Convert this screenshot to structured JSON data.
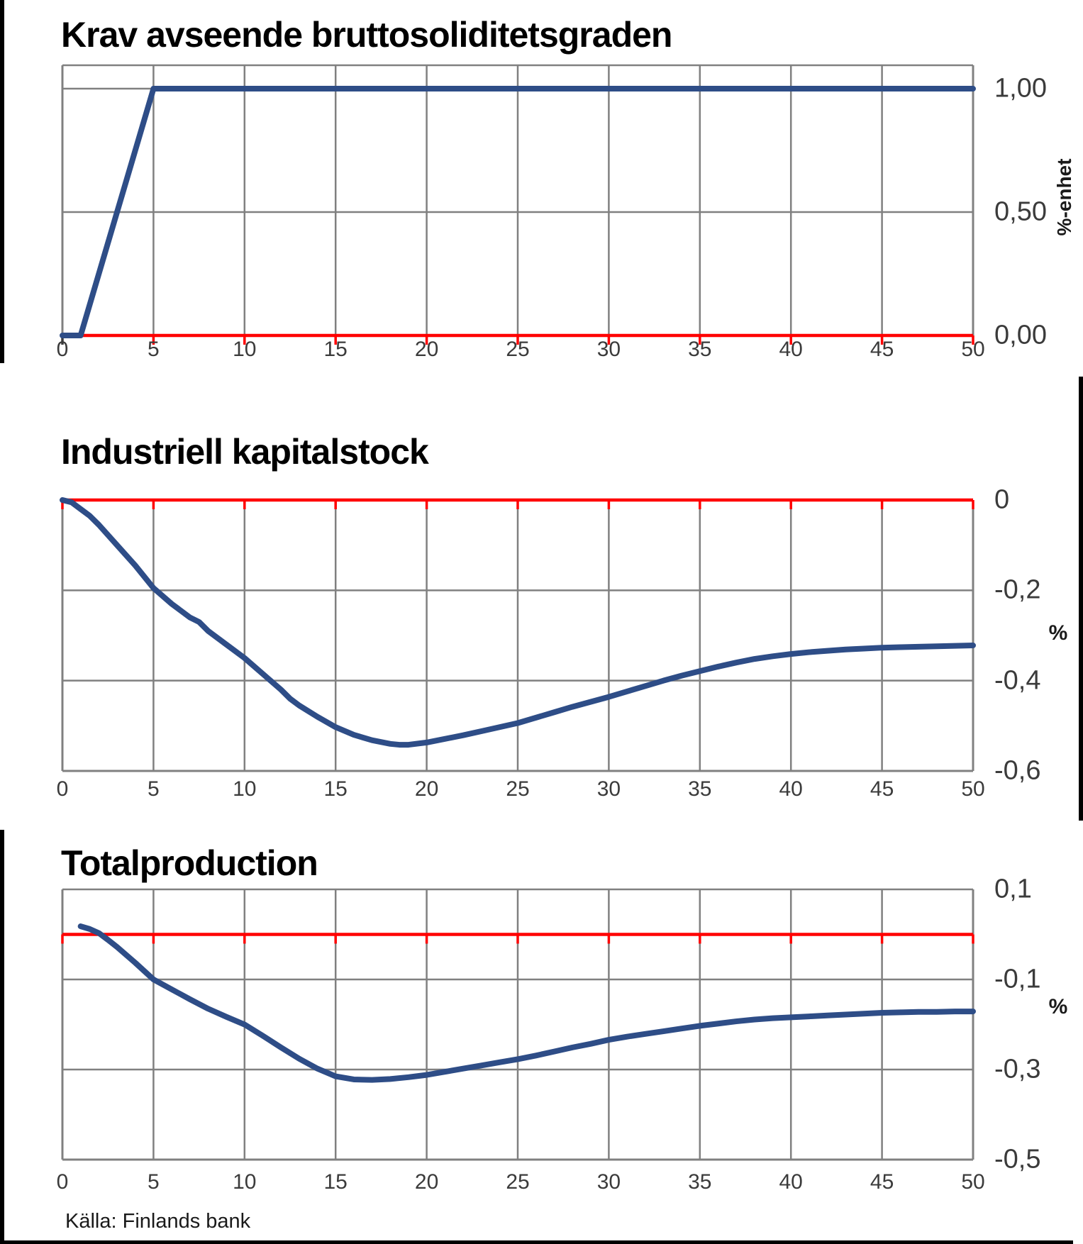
{
  "source_note": "Källa: Finlands bank",
  "colors": {
    "curve": "#2e4d87",
    "zero_line": "#ff0000",
    "grid": "#808080",
    "frame": "#808080",
    "axis_text": "#3b3b3b",
    "title_text": "#000000",
    "edge_mark": "#000000"
  },
  "chart_data": [
    {
      "type": "line",
      "title": "Krav avseende bruttosoliditetsgraden",
      "x_axis": {
        "min": 0,
        "max": 50,
        "tick_step": 5,
        "tick_labels": [
          "0",
          "5",
          "10",
          "15",
          "20",
          "25",
          "30",
          "35",
          "40",
          "45",
          "50"
        ]
      },
      "y_axis": {
        "min": 0,
        "max": 1.095,
        "unit": "%-enhet",
        "tick_labels": [
          {
            "label": "1,00",
            "value": 1.0
          },
          {
            "label": "0,50",
            "value": 0.5
          },
          {
            "label": "0,00",
            "value": 0.0
          }
        ],
        "gridline_values": [
          1.0,
          0.5
        ],
        "zero_line_value": 0.0
      },
      "series": [
        {
          "points": [
            [
              0,
              0
            ],
            [
              1,
              0
            ],
            [
              5,
              1.0
            ],
            [
              50,
              1.0
            ]
          ]
        }
      ]
    },
    {
      "type": "line",
      "title": "Industriell kapitalstock",
      "x_axis": {
        "min": 0,
        "max": 50,
        "tick_step": 5,
        "tick_labels": [
          "0",
          "5",
          "10",
          "15",
          "20",
          "25",
          "30",
          "35",
          "40",
          "45",
          "50"
        ]
      },
      "y_axis": {
        "min": -0.6,
        "max": 0,
        "unit": "%",
        "tick_labels": [
          {
            "label": "0",
            "value": 0
          },
          {
            "label": "-0,2",
            "value": -0.2
          },
          {
            "label": "-0,4",
            "value": -0.4
          },
          {
            "label": "-0,6",
            "value": -0.6
          }
        ],
        "gridline_values": [
          -0.2,
          -0.4
        ],
        "zero_line_value": 0.0
      },
      "series": [
        {
          "points": [
            [
              0,
              0
            ],
            [
              0.5,
              -0.005
            ],
            [
              1,
              -0.02
            ],
            [
              1.5,
              -0.035
            ],
            [
              2,
              -0.055
            ],
            [
              3,
              -0.1
            ],
            [
              4,
              -0.145
            ],
            [
              5,
              -0.195
            ],
            [
              6,
              -0.23
            ],
            [
              7,
              -0.26
            ],
            [
              7.5,
              -0.27
            ],
            [
              8,
              -0.29
            ],
            [
              9,
              -0.32
            ],
            [
              10,
              -0.35
            ],
            [
              11,
              -0.385
            ],
            [
              12,
              -0.42
            ],
            [
              12.5,
              -0.44
            ],
            [
              13,
              -0.455
            ],
            [
              14,
              -0.48
            ],
            [
              15,
              -0.503
            ],
            [
              16,
              -0.52
            ],
            [
              17,
              -0.532
            ],
            [
              18,
              -0.54
            ],
            [
              18.5,
              -0.542
            ],
            [
              19,
              -0.542
            ],
            [
              20,
              -0.537
            ],
            [
              21,
              -0.529
            ],
            [
              22,
              -0.521
            ],
            [
              23,
              -0.512
            ],
            [
              24,
              -0.503
            ],
            [
              25,
              -0.494
            ],
            [
              26,
              -0.482
            ],
            [
              27,
              -0.47
            ],
            [
              28,
              -0.458
            ],
            [
              29,
              -0.447
            ],
            [
              30,
              -0.436
            ],
            [
              31,
              -0.424
            ],
            [
              32,
              -0.412
            ],
            [
              33,
              -0.4
            ],
            [
              34,
              -0.389
            ],
            [
              35,
              -0.379
            ],
            [
              36,
              -0.369
            ],
            [
              37,
              -0.36
            ],
            [
              38,
              -0.352
            ],
            [
              39,
              -0.346
            ],
            [
              40,
              -0.341
            ],
            [
              41,
              -0.337
            ],
            [
              42,
              -0.334
            ],
            [
              43,
              -0.331
            ],
            [
              44,
              -0.329
            ],
            [
              45,
              -0.327
            ],
            [
              46,
              -0.326
            ],
            [
              47,
              -0.325
            ],
            [
              48,
              -0.324
            ],
            [
              49,
              -0.323
            ],
            [
              50,
              -0.322
            ]
          ]
        }
      ]
    },
    {
      "type": "line",
      "title": "Totalproduction",
      "x_axis": {
        "min": 0,
        "max": 50,
        "tick_step": 5,
        "tick_labels": [
          "0",
          "5",
          "10",
          "15",
          "20",
          "25",
          "30",
          "35",
          "40",
          "45",
          "50"
        ]
      },
      "y_axis": {
        "min": -0.5,
        "max": 0.1,
        "unit": "%",
        "tick_labels": [
          {
            "label": "0,1",
            "value": 0.1
          },
          {
            "label": "-0,1",
            "value": -0.1
          },
          {
            "label": "-0,3",
            "value": -0.3
          },
          {
            "label": "-0,5",
            "value": -0.5
          }
        ],
        "gridline_values": [
          -0.1,
          -0.3
        ],
        "zero_line_value": 0.0
      },
      "series": [
        {
          "points": [
            [
              1,
              0.018
            ],
            [
              1.5,
              0.012
            ],
            [
              2,
              0.003
            ],
            [
              2.5,
              -0.012
            ],
            [
              3,
              -0.028
            ],
            [
              4,
              -0.063
            ],
            [
              5,
              -0.1
            ],
            [
              6,
              -0.122
            ],
            [
              7,
              -0.144
            ],
            [
              8,
              -0.165
            ],
            [
              9,
              -0.183
            ],
            [
              10,
              -0.2
            ],
            [
              11,
              -0.225
            ],
            [
              12,
              -0.251
            ],
            [
              13,
              -0.276
            ],
            [
              14,
              -0.298
            ],
            [
              15,
              -0.315
            ],
            [
              16,
              -0.322
            ],
            [
              17,
              -0.323
            ],
            [
              18,
              -0.321
            ],
            [
              19,
              -0.317
            ],
            [
              20,
              -0.312
            ],
            [
              21,
              -0.305
            ],
            [
              22,
              -0.298
            ],
            [
              23,
              -0.291
            ],
            [
              24,
              -0.284
            ],
            [
              25,
              -0.277
            ],
            [
              26,
              -0.269
            ],
            [
              27,
              -0.26
            ],
            [
              28,
              -0.251
            ],
            [
              29,
              -0.243
            ],
            [
              30,
              -0.234
            ],
            [
              31,
              -0.227
            ],
            [
              32,
              -0.221
            ],
            [
              33,
              -0.215
            ],
            [
              34,
              -0.209
            ],
            [
              35,
              -0.203
            ],
            [
              36,
              -0.198
            ],
            [
              37,
              -0.193
            ],
            [
              38,
              -0.189
            ],
            [
              39,
              -0.186
            ],
            [
              40,
              -0.184
            ],
            [
              41,
              -0.182
            ],
            [
              42,
              -0.18
            ],
            [
              43,
              -0.178
            ],
            [
              44,
              -0.176
            ],
            [
              45,
              -0.174
            ],
            [
              46,
              -0.173
            ],
            [
              47,
              -0.172
            ],
            [
              48,
              -0.172
            ],
            [
              49,
              -0.171
            ],
            [
              50,
              -0.171
            ]
          ]
        }
      ]
    }
  ]
}
